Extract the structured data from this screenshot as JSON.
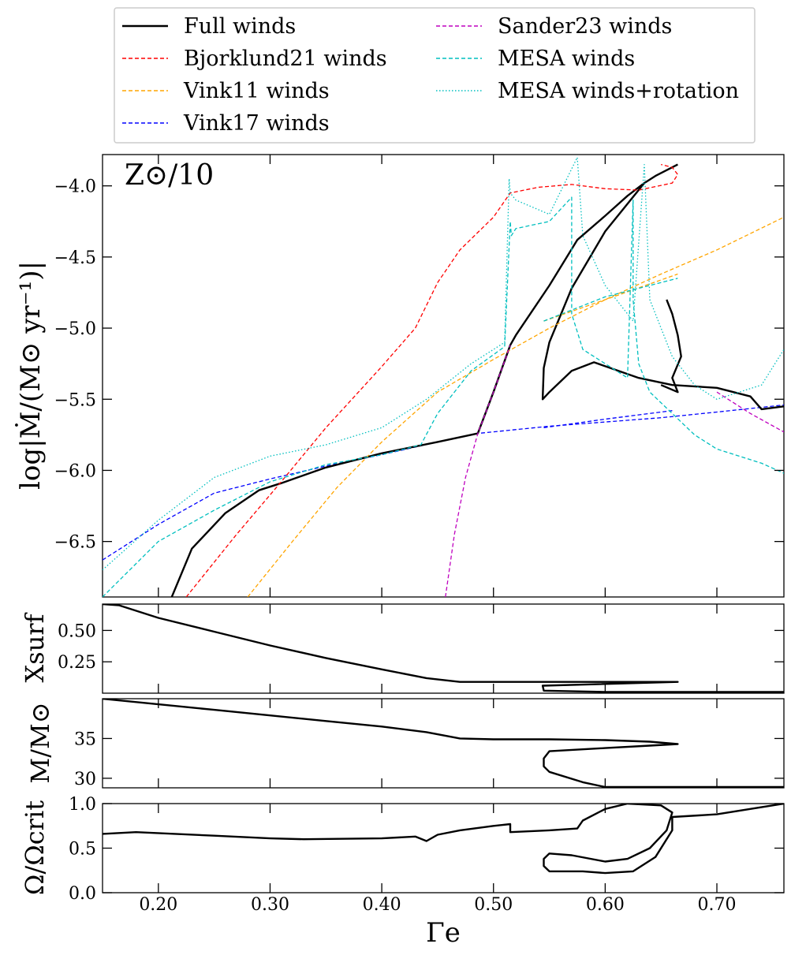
{
  "figure": {
    "annotation": "Z⊙/10",
    "xlabel": "Γe",
    "xlim": [
      0.15,
      0.76
    ],
    "xticks": [
      0.2,
      0.3,
      0.4,
      0.5,
      0.6,
      0.7
    ],
    "xtick_labels": [
      "0.20",
      "0.30",
      "0.40",
      "0.50",
      "0.60",
      "0.70"
    ]
  },
  "legend": {
    "placement": "top, above plot, two columns",
    "entries": [
      {
        "label": "Full winds",
        "color": "#000000",
        "style": "solid"
      },
      {
        "label": "Bjorklund21 winds",
        "color": "#ff0000",
        "style": "dashed"
      },
      {
        "label": "Vink11 winds",
        "color": "#ffa500",
        "style": "dashed"
      },
      {
        "label": "Vink17 winds",
        "color": "#0000ff",
        "style": "dashed"
      },
      {
        "label": "Sander23 winds",
        "color": "#bf00bf",
        "style": "dashed"
      },
      {
        "label": "MESA winds",
        "color": "#00bfbf",
        "style": "dashed"
      },
      {
        "label": "MESA winds+rotation",
        "color": "#00bfbf",
        "style": "dotted"
      }
    ]
  },
  "chart_data": [
    {
      "type": "line",
      "panel": "mass-loss",
      "ylabel": "log|Ṁ/(M⊙ yr⁻¹)|",
      "ylim": [
        -6.89,
        -3.78
      ],
      "yticks": [
        -4.0,
        -4.5,
        -5.0,
        -5.5,
        -6.0,
        -6.5
      ],
      "ytick_labels": [
        "−4.0",
        "−4.5",
        "−5.0",
        "−5.5",
        "−6.0",
        "−6.5"
      ],
      "series": [
        {
          "name": "Vink17 winds",
          "color": "#0000ff",
          "style": "dashed",
          "x": [
            0.15,
            0.2,
            0.25,
            0.3,
            0.35,
            0.4,
            0.45,
            0.486,
            0.55,
            0.6,
            0.65,
            0.7,
            0.76
          ],
          "y": [
            -6.63,
            -6.38,
            -6.16,
            -6.06,
            -5.97,
            -5.89,
            -5.8,
            -5.74,
            -5.69,
            -5.66,
            -5.63,
            -5.59,
            -5.54
          ]
        },
        {
          "name": "Vink17 winds (upper branch)",
          "color": "#0000ff",
          "style": "dashed",
          "x": [
            0.545,
            0.6,
            0.64,
            0.66
          ],
          "y": [
            -5.7,
            -5.64,
            -5.6,
            -5.58
          ]
        },
        {
          "name": "Full winds",
          "color": "#000000",
          "style": "solid",
          "x": [
            0.212,
            0.23,
            0.26,
            0.29,
            0.31,
            0.35,
            0.4,
            0.45,
            0.486,
            0.5,
            0.515,
            0.52,
            0.55,
            0.575,
            0.6,
            0.62,
            0.635,
            0.6,
            0.57,
            0.55,
            0.545,
            0.544,
            0.55,
            0.57,
            0.59,
            0.63,
            0.66,
            0.7,
            0.73,
            0.74,
            0.76
          ],
          "y": [
            -6.89,
            -6.55,
            -6.3,
            -6.14,
            -6.09,
            -5.98,
            -5.88,
            -5.8,
            -5.74,
            -5.45,
            -5.12,
            -5.05,
            -4.7,
            -4.38,
            -4.21,
            -4.07,
            -3.98,
            -4.32,
            -4.72,
            -5.1,
            -5.28,
            -5.5,
            -5.45,
            -5.3,
            -5.24,
            -5.35,
            -5.4,
            -5.42,
            -5.48,
            -5.57,
            -5.55
          ]
        },
        {
          "name": "Full winds (late branch)",
          "color": "#000000",
          "style": "solid",
          "x": [
            0.635,
            0.645,
            0.665
          ],
          "y": [
            -3.98,
            -3.93,
            -3.85
          ]
        },
        {
          "name": "Full winds (hook)",
          "color": "#000000",
          "style": "solid",
          "x": [
            0.655,
            0.66,
            0.665,
            0.668,
            0.66,
            0.665,
            0.65
          ],
          "y": [
            -4.8,
            -4.9,
            -5.05,
            -5.2,
            -5.35,
            -5.45,
            -5.4
          ]
        },
        {
          "name": "Bjorklund21 winds",
          "color": "#ff0000",
          "style": "dashed",
          "x": [
            0.225,
            0.27,
            0.31,
            0.35,
            0.4,
            0.43,
            0.45,
            0.47,
            0.5,
            0.515,
            0.54,
            0.57,
            0.6,
            0.63,
            0.66,
            0.665,
            0.66,
            0.65
          ],
          "y": [
            -6.89,
            -6.45,
            -6.08,
            -5.7,
            -5.27,
            -5.0,
            -4.68,
            -4.45,
            -4.22,
            -4.05,
            -4.01,
            -3.99,
            -4.02,
            -4.03,
            -3.98,
            -3.92,
            -3.87,
            -3.85
          ]
        },
        {
          "name": "Vink11 winds",
          "color": "#ffa500",
          "style": "dashed",
          "x": [
            0.28,
            0.32,
            0.36,
            0.4,
            0.45,
            0.5,
            0.55,
            0.6,
            0.65,
            0.7,
            0.76
          ],
          "y": [
            -6.89,
            -6.5,
            -6.12,
            -5.8,
            -5.45,
            -5.22,
            -5.0,
            -4.8,
            -4.62,
            -4.45,
            -4.22
          ]
        },
        {
          "name": "Vink11 winds (branch)",
          "color": "#ffa500",
          "style": "dashed",
          "x": [
            0.545,
            0.6,
            0.665
          ],
          "y": [
            -4.95,
            -4.8,
            -4.62
          ]
        },
        {
          "name": "Sander23 winds",
          "color": "#bf00bf",
          "style": "dashed",
          "x": [
            0.457,
            0.465,
            0.475,
            0.486,
            0.5,
            0.515
          ],
          "y": [
            -6.89,
            -6.45,
            -6.05,
            -5.74,
            -5.45,
            -5.12
          ]
        },
        {
          "name": "Sander23 winds (tail)",
          "color": "#bf00bf",
          "style": "dashed",
          "x": [
            0.7,
            0.73,
            0.76
          ],
          "y": [
            -5.45,
            -5.6,
            -5.73
          ]
        },
        {
          "name": "MESA winds",
          "color": "#00bfbf",
          "style": "dashed",
          "x": [
            0.15,
            0.2,
            0.25,
            0.3,
            0.35,
            0.4,
            0.435,
            0.45,
            0.48,
            0.51,
            0.515,
            0.516,
            0.52,
            0.55,
            0.57,
            0.57,
            0.58,
            0.62,
            0.625,
            0.625,
            0.63,
            0.64,
            0.66,
            0.68,
            0.7,
            0.72,
            0.74,
            0.76
          ],
          "y": [
            -6.89,
            -6.5,
            -6.28,
            -6.08,
            -5.96,
            -5.89,
            -5.82,
            -5.6,
            -5.3,
            -5.13,
            -4.25,
            -4.35,
            -4.3,
            -4.25,
            -4.08,
            -4.9,
            -5.15,
            -5.35,
            -4.1,
            -4.8,
            -5.25,
            -5.45,
            -5.6,
            -5.75,
            -5.85,
            -5.9,
            -5.95,
            -6.02
          ]
        },
        {
          "name": "MESA winds (lower branch)",
          "color": "#00bfbf",
          "style": "dashed",
          "x": [
            0.545,
            0.6,
            0.665
          ],
          "y": [
            -4.95,
            -4.78,
            -4.65
          ]
        },
        {
          "name": "MESA winds+rotation",
          "color": "#00bfbf",
          "style": "dotted",
          "x": [
            0.15,
            0.2,
            0.25,
            0.3,
            0.35,
            0.4,
            0.44,
            0.48,
            0.51,
            0.514,
            0.515,
            0.52,
            0.55,
            0.575,
            0.58,
            0.6,
            0.625,
            0.635,
            0.64,
            0.66,
            0.68,
            0.7,
            0.72,
            0.74,
            0.76
          ],
          "y": [
            -6.7,
            -6.35,
            -6.05,
            -5.9,
            -5.82,
            -5.7,
            -5.5,
            -5.25,
            -5.1,
            -3.95,
            -4.05,
            -4.1,
            -4.2,
            -3.8,
            -4.35,
            -4.7,
            -4.95,
            -3.85,
            -4.8,
            -5.2,
            -5.4,
            -5.5,
            -5.45,
            -5.4,
            -5.15
          ]
        }
      ]
    },
    {
      "type": "line",
      "panel": "surface-hydrogen",
      "ylabel": "Xsurf",
      "ylim": [
        0.0,
        0.71
      ],
      "yticks": [
        0.5,
        0.25
      ],
      "ytick_labels": [
        "0.50",
        "0.25"
      ],
      "series": [
        {
          "name": "Full winds",
          "color": "#000000",
          "style": "solid",
          "x": [
            0.15,
            0.165,
            0.2,
            0.25,
            0.3,
            0.35,
            0.4,
            0.44,
            0.47,
            0.55,
            0.6,
            0.665,
            0.544,
            0.545,
            0.6,
            0.7,
            0.76
          ],
          "y": [
            0.71,
            0.7,
            0.6,
            0.49,
            0.38,
            0.28,
            0.19,
            0.12,
            0.09,
            0.09,
            0.09,
            0.09,
            0.06,
            0.02,
            0.01,
            0.01,
            0.01
          ]
        }
      ]
    },
    {
      "type": "line",
      "panel": "mass",
      "ylabel": "M/M⊙",
      "ylim": [
        28.8,
        40.0
      ],
      "yticks": [
        35,
        30
      ],
      "ytick_labels": [
        "35",
        "30"
      ],
      "series": [
        {
          "name": "Full winds",
          "color": "#000000",
          "style": "solid",
          "x": [
            0.15,
            0.2,
            0.25,
            0.3,
            0.35,
            0.4,
            0.44,
            0.47,
            0.5,
            0.55,
            0.6,
            0.64,
            0.665,
            0.64,
            0.6,
            0.55,
            0.545,
            0.545,
            0.55,
            0.58,
            0.6,
            0.7,
            0.76
          ],
          "y": [
            40.0,
            39.3,
            38.6,
            37.9,
            37.2,
            36.5,
            35.8,
            35.0,
            34.9,
            34.9,
            34.8,
            34.6,
            34.3,
            34.1,
            33.8,
            33.4,
            32.5,
            31.5,
            30.8,
            29.5,
            28.9,
            28.9,
            28.9
          ]
        }
      ]
    },
    {
      "type": "line",
      "panel": "rotation",
      "ylabel": "Ω/Ωcrit",
      "ylim": [
        0.0,
        1.0
      ],
      "yticks": [
        1.0,
        0.5,
        0.0
      ],
      "ytick_labels": [
        "1.0",
        "0.5",
        "0.0"
      ],
      "series": [
        {
          "name": "Full winds",
          "color": "#000000",
          "style": "solid",
          "x": [
            0.15,
            0.18,
            0.25,
            0.3,
            0.33,
            0.4,
            0.43,
            0.44,
            0.45,
            0.47,
            0.5,
            0.515,
            0.515,
            0.55,
            0.575,
            0.58,
            0.6,
            0.62,
            0.65,
            0.66,
            0.655,
            0.64,
            0.62,
            0.6,
            0.57,
            0.55,
            0.545,
            0.545,
            0.55,
            0.58,
            0.6,
            0.625,
            0.645,
            0.66,
            0.66,
            0.7,
            0.76
          ],
          "y": [
            0.66,
            0.68,
            0.64,
            0.61,
            0.6,
            0.61,
            0.63,
            0.58,
            0.65,
            0.7,
            0.75,
            0.77,
            0.68,
            0.7,
            0.72,
            0.81,
            0.94,
            1.0,
            0.98,
            0.9,
            0.7,
            0.5,
            0.38,
            0.35,
            0.42,
            0.44,
            0.38,
            0.3,
            0.24,
            0.24,
            0.22,
            0.24,
            0.4,
            0.7,
            0.85,
            0.88,
            1.0
          ]
        }
      ]
    }
  ]
}
